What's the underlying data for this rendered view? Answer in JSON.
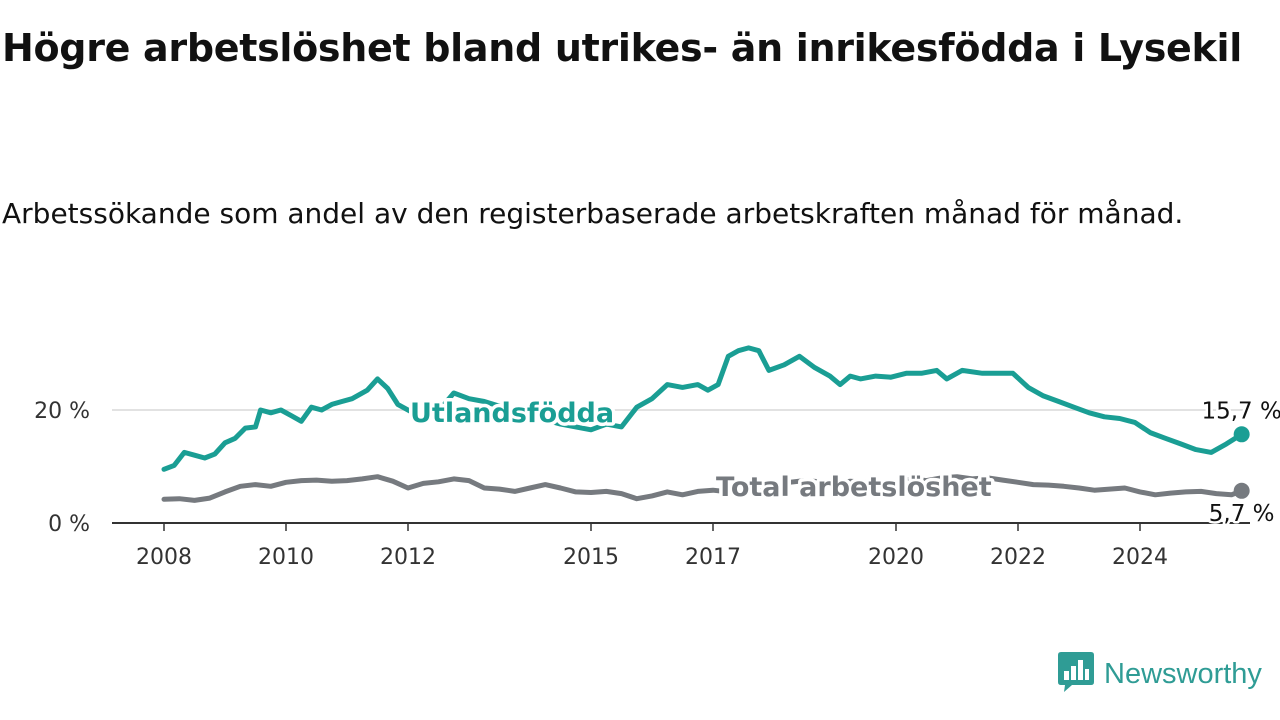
{
  "title": "Högre arbetslöshet bland utrikes- än inrikesfödda i Lysekil",
  "subtitle": "Arbetssökande som andel av den registerbaserade arbetskraften månad för månad.",
  "brand": {
    "name": "Newsworthy",
    "icon": "newsworthy-logo-icon",
    "color": "#2f9c95"
  },
  "chart_data": {
    "type": "line",
    "x_ticks": [
      "2008",
      "2010",
      "2012",
      "2015",
      "2017",
      "2020",
      "2022",
      "2024"
    ],
    "y_ticks": [
      "0 %",
      "20 %"
    ],
    "ylim": [
      0,
      35
    ],
    "grid": "horizontal",
    "series": [
      {
        "name": "Utlandsfödda",
        "color": "#1a9e94",
        "end_label": "15,7 %",
        "points": [
          [
            "2008-01",
            9.5
          ],
          [
            "2008-03",
            10.2
          ],
          [
            "2008-05",
            12.5
          ],
          [
            "2008-07",
            12.0
          ],
          [
            "2008-09",
            11.5
          ],
          [
            "2008-11",
            12.2
          ],
          [
            "2009-01",
            14.2
          ],
          [
            "2009-03",
            15.0
          ],
          [
            "2009-05",
            16.8
          ],
          [
            "2009-07",
            17.0
          ],
          [
            "2009-08",
            20.0
          ],
          [
            "2009-10",
            19.5
          ],
          [
            "2009-12",
            20.0
          ],
          [
            "2010-02",
            19.0
          ],
          [
            "2010-04",
            18.0
          ],
          [
            "2010-06",
            20.5
          ],
          [
            "2010-08",
            20.0
          ],
          [
            "2010-10",
            21.0
          ],
          [
            "2010-12",
            21.5
          ],
          [
            "2011-02",
            22.0
          ],
          [
            "2011-05",
            23.5
          ],
          [
            "2011-07",
            25.5
          ],
          [
            "2011-09",
            23.8
          ],
          [
            "2011-11",
            21.0
          ],
          [
            "2012-02",
            19.5
          ],
          [
            "2012-05",
            21.0
          ],
          [
            "2012-07",
            19.8
          ],
          [
            "2012-10",
            23.0
          ],
          [
            "2013-01",
            22.0
          ],
          [
            "2013-04",
            21.5
          ],
          [
            "2014-01",
            19.0
          ],
          [
            "2014-07",
            17.5
          ],
          [
            "2015-01",
            16.5
          ],
          [
            "2015-04",
            17.5
          ],
          [
            "2015-07",
            17.0
          ],
          [
            "2015-10",
            20.5
          ],
          [
            "2016-01",
            22.0
          ],
          [
            "2016-04",
            24.5
          ],
          [
            "2016-07",
            24.0
          ],
          [
            "2016-10",
            24.5
          ],
          [
            "2016-12",
            23.5
          ],
          [
            "2017-02",
            24.5
          ],
          [
            "2017-04",
            29.5
          ],
          [
            "2017-06",
            30.5
          ],
          [
            "2017-08",
            31.0
          ],
          [
            "2017-10",
            30.5
          ],
          [
            "2017-12",
            27.0
          ],
          [
            "2018-03",
            28.0
          ],
          [
            "2018-06",
            29.5
          ],
          [
            "2018-09",
            27.5
          ],
          [
            "2018-12",
            26.0
          ],
          [
            "2019-02",
            24.5
          ],
          [
            "2019-04",
            26.0
          ],
          [
            "2019-06",
            25.5
          ],
          [
            "2019-09",
            26.0
          ],
          [
            "2019-12",
            25.8
          ],
          [
            "2020-03",
            26.5
          ],
          [
            "2020-06",
            26.5
          ],
          [
            "2020-09",
            27.0
          ],
          [
            "2020-11",
            25.5
          ],
          [
            "2021-02",
            27.0
          ],
          [
            "2021-06",
            26.5
          ],
          [
            "2021-09",
            26.5
          ],
          [
            "2021-12",
            26.5
          ],
          [
            "2022-03",
            24.0
          ],
          [
            "2022-06",
            22.5
          ],
          [
            "2022-09",
            21.5
          ],
          [
            "2022-12",
            20.5
          ],
          [
            "2023-03",
            19.5
          ],
          [
            "2023-06",
            18.8
          ],
          [
            "2023-09",
            18.5
          ],
          [
            "2023-12",
            17.8
          ],
          [
            "2024-03",
            16.0
          ],
          [
            "2024-06",
            15.0
          ],
          [
            "2024-09",
            14.0
          ],
          [
            "2024-12",
            13.0
          ],
          [
            "2025-03",
            12.5
          ],
          [
            "2025-06",
            14.0
          ],
          [
            "2025-09",
            15.7
          ]
        ]
      },
      {
        "name": "Total arbetslöshet",
        "color": "#767a7f",
        "end_label": "5,7 %",
        "points": [
          [
            "2008-01",
            4.2
          ],
          [
            "2008-04",
            4.3
          ],
          [
            "2008-07",
            4.0
          ],
          [
            "2008-10",
            4.4
          ],
          [
            "2009-01",
            5.5
          ],
          [
            "2009-04",
            6.5
          ],
          [
            "2009-07",
            6.8
          ],
          [
            "2009-10",
            6.5
          ],
          [
            "2010-01",
            7.2
          ],
          [
            "2010-04",
            7.5
          ],
          [
            "2010-07",
            7.6
          ],
          [
            "2010-10",
            7.4
          ],
          [
            "2011-01",
            7.5
          ],
          [
            "2011-04",
            7.8
          ],
          [
            "2011-07",
            8.2
          ],
          [
            "2011-10",
            7.4
          ],
          [
            "2012-01",
            6.2
          ],
          [
            "2012-04",
            7.0
          ],
          [
            "2012-07",
            7.3
          ],
          [
            "2012-10",
            7.8
          ],
          [
            "2013-01",
            7.5
          ],
          [
            "2013-04",
            6.2
          ],
          [
            "2013-07",
            6.0
          ],
          [
            "2013-10",
            5.6
          ],
          [
            "2014-01",
            6.2
          ],
          [
            "2014-04",
            6.8
          ],
          [
            "2014-07",
            6.2
          ],
          [
            "2014-10",
            5.5
          ],
          [
            "2015-01",
            5.4
          ],
          [
            "2015-04",
            5.6
          ],
          [
            "2015-07",
            5.2
          ],
          [
            "2015-10",
            4.3
          ],
          [
            "2016-01",
            4.8
          ],
          [
            "2016-04",
            5.5
          ],
          [
            "2016-07",
            5.0
          ],
          [
            "2016-10",
            5.6
          ],
          [
            "2017-01",
            5.8
          ],
          [
            "2017-04",
            5.5
          ],
          [
            "2017-07",
            5.2
          ],
          [
            "2017-10",
            5.9
          ],
          [
            "2018-01",
            6.6
          ],
          [
            "2018-04",
            7.2
          ],
          [
            "2018-07",
            7.5
          ],
          [
            "2018-10",
            7.3
          ],
          [
            "2019-01",
            7.0
          ],
          [
            "2019-04",
            7.4
          ],
          [
            "2019-07",
            7.2
          ],
          [
            "2019-10",
            7.0
          ],
          [
            "2020-01",
            7.3
          ],
          [
            "2020-04",
            7.8
          ],
          [
            "2020-07",
            7.5
          ],
          [
            "2020-10",
            8.0
          ],
          [
            "2021-01",
            8.2
          ],
          [
            "2021-04",
            7.8
          ],
          [
            "2021-07",
            8.0
          ],
          [
            "2021-10",
            7.6
          ],
          [
            "2022-01",
            7.2
          ],
          [
            "2022-04",
            6.8
          ],
          [
            "2022-07",
            6.7
          ],
          [
            "2022-10",
            6.5
          ],
          [
            "2023-01",
            6.2
          ],
          [
            "2023-04",
            5.8
          ],
          [
            "2023-07",
            6.0
          ],
          [
            "2023-10",
            6.2
          ],
          [
            "2024-01",
            5.5
          ],
          [
            "2024-04",
            5.0
          ],
          [
            "2024-07",
            5.3
          ],
          [
            "2024-10",
            5.5
          ],
          [
            "2025-01",
            5.6
          ],
          [
            "2025-04",
            5.2
          ],
          [
            "2025-07",
            5.0
          ],
          [
            "2025-09",
            5.7
          ]
        ]
      }
    ]
  }
}
